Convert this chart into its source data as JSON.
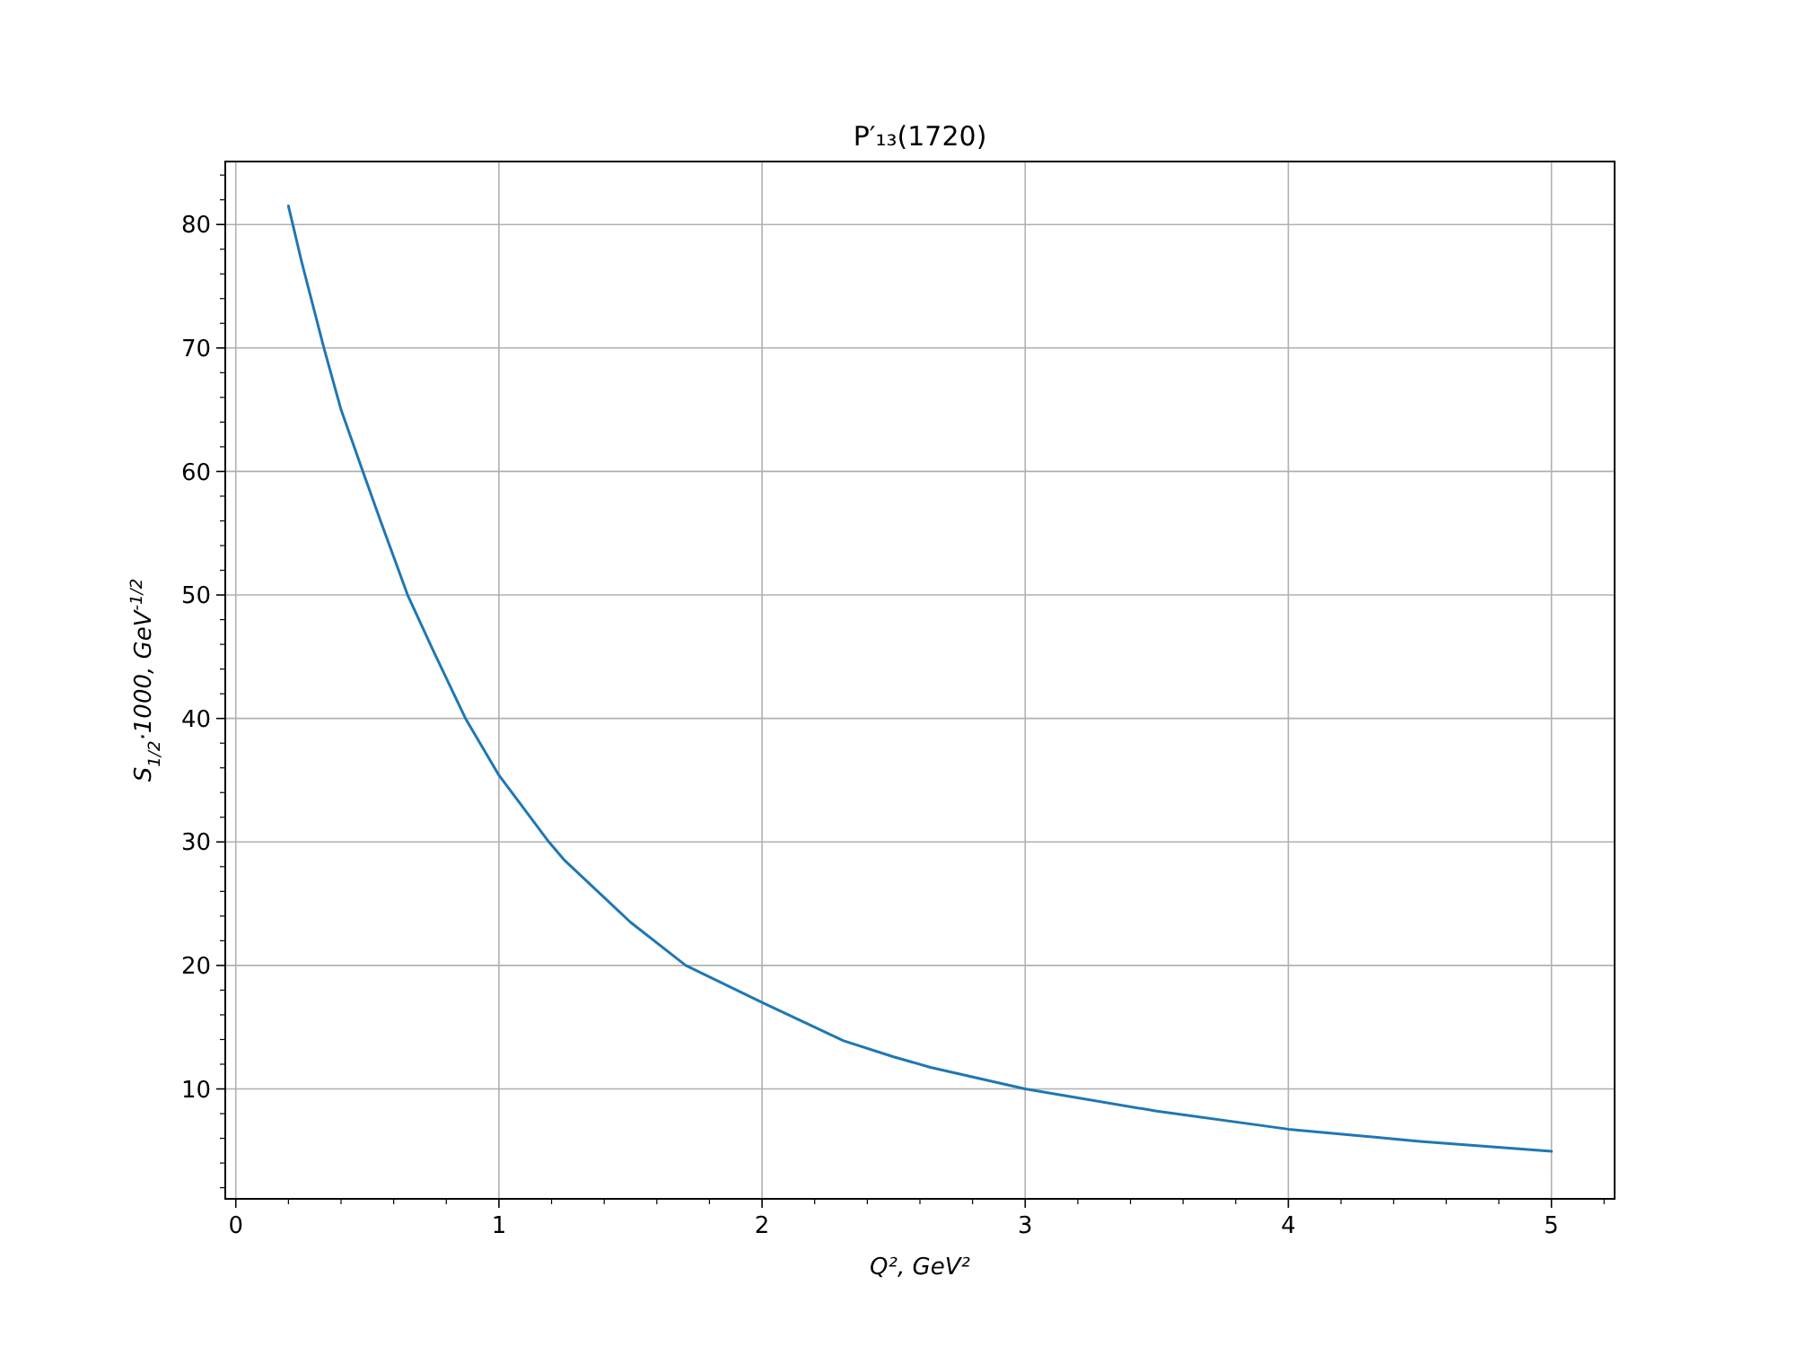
{
  "chart_data": {
    "type": "line",
    "title": "P′₁₃(1720)",
    "xlabel": "Q², GeV²",
    "ylabel": "S$_{1/2}$·1000, GeV$^{-1/2}$",
    "x": [
      0.2,
      0.25,
      0.335,
      0.4,
      0.483,
      0.55,
      0.653,
      0.75,
      0.873,
      1.0,
      1.19,
      1.25,
      1.5,
      1.71,
      2.0,
      2.31,
      2.5,
      2.64,
      3.0,
      3.5,
      4.0,
      4.5,
      5.0
    ],
    "series": [
      {
        "color": "#1f77b4",
        "values": [
          81.5,
          77,
          70,
          65,
          60,
          56,
          50,
          45.5,
          40,
          35.4,
          30,
          28.5,
          23.5,
          20,
          17,
          13.9,
          12.6,
          11.75,
          10,
          8.2,
          6.74,
          5.75,
          4.95
        ]
      }
    ],
    "xlim": [
      -0.04,
      5.24
    ],
    "ylim": [
      1.1,
      85.1
    ],
    "xticks": [
      0,
      1,
      2,
      3,
      4,
      5,
      {
        "value": 0.2,
        "label": null
      },
      {
        "value": 0.4,
        "label": null
      },
      {
        "value": 0.6,
        "label": null
      },
      {
        "value": 0.8,
        "label": null
      },
      {
        "value": 1.2,
        "label": null
      },
      {
        "value": 1.4,
        "label": null
      },
      {
        "value": 1.6,
        "label": null
      },
      {
        "value": 1.8,
        "label": null
      },
      {
        "value": 2.2,
        "label": null
      },
      {
        "value": 2.4,
        "label": null
      },
      {
        "value": 2.6,
        "label": null
      },
      {
        "value": 2.8,
        "label": null
      },
      {
        "value": 3.2,
        "label": null
      },
      {
        "value": 3.4,
        "label": null
      },
      {
        "value": 3.6,
        "label": null
      },
      {
        "value": 3.8,
        "label": null
      },
      {
        "value": 4.2,
        "label": null
      },
      {
        "value": 4.4,
        "label": null
      },
      {
        "value": 4.6,
        "label": null
      },
      {
        "value": 4.8,
        "label": null
      },
      {
        "value": 5.2,
        "label": null
      }
    ],
    "yticks": [
      10,
      20,
      30,
      40,
      50,
      60,
      70,
      80,
      {
        "value": 2,
        "label": null
      },
      {
        "value": 4,
        "label": null
      },
      {
        "value": 6,
        "label": null
      },
      {
        "value": 8,
        "label": null
      },
      {
        "value": 12,
        "label": null
      },
      {
        "value": 14,
        "label": null
      },
      {
        "value": 16,
        "label": null
      },
      {
        "value": 18,
        "label": null
      },
      {
        "value": 22,
        "label": null
      },
      {
        "value": 24,
        "label": null
      },
      {
        "value": 26,
        "label": null
      },
      {
        "value": 28,
        "label": null
      },
      {
        "value": 32,
        "label": null
      },
      {
        "value": 34,
        "label": null
      },
      {
        "value": 36,
        "label": null
      },
      {
        "value": 38,
        "label": null
      },
      {
        "value": 42,
        "label": null
      },
      {
        "value": 44,
        "label": null
      },
      {
        "value": 46,
        "label": null
      },
      {
        "value": 48,
        "label": null
      },
      {
        "value": 52,
        "label": null
      },
      {
        "value": 54,
        "label": null
      },
      {
        "value": 56,
        "label": null
      },
      {
        "value": 58,
        "label": null
      },
      {
        "value": 62,
        "label": null
      },
      {
        "value": 64,
        "label": null
      },
      {
        "value": 66,
        "label": null
      },
      {
        "value": 68,
        "label": null
      },
      {
        "value": 72,
        "label": null
      },
      {
        "value": 74,
        "label": null
      },
      {
        "value": 76,
        "label": null
      },
      {
        "value": 78,
        "label": null
      },
      {
        "value": 82,
        "label": null
      },
      {
        "value": 84,
        "label": null
      }
    ],
    "grid": true,
    "marker": "none",
    "line_style": "solid"
  }
}
